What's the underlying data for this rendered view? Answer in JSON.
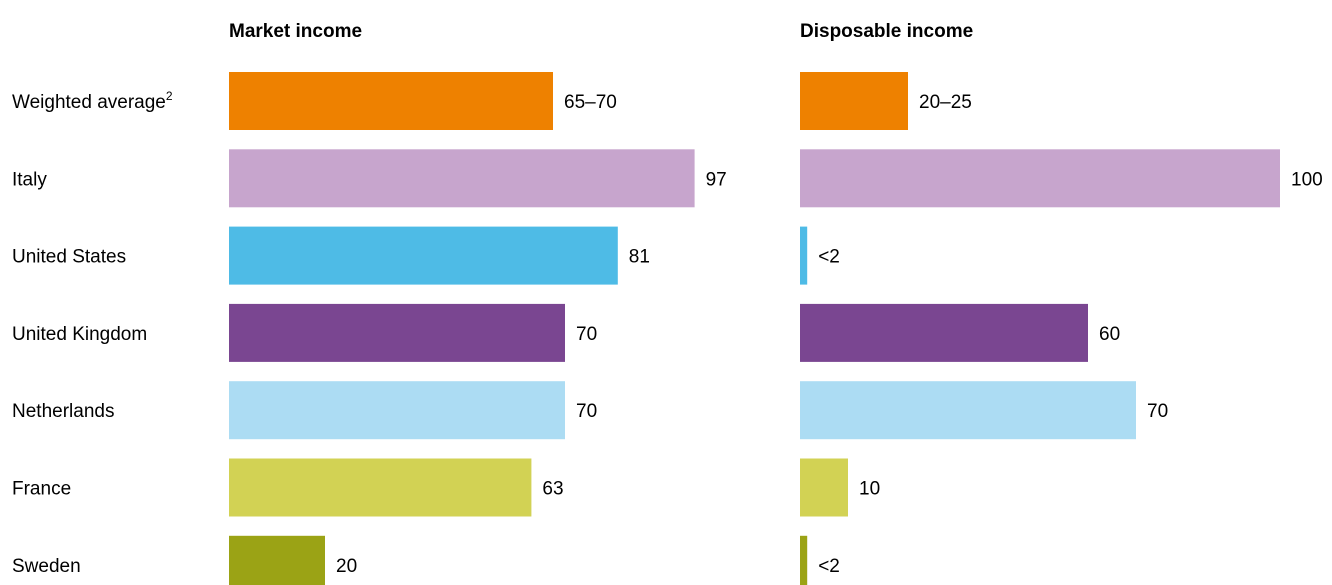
{
  "chart_data": {
    "type": "bar",
    "orientation": "horizontal",
    "categories": [
      {
        "label": "Weighted average",
        "superscript": "2"
      },
      {
        "label": "Italy",
        "superscript": ""
      },
      {
        "label": "United States",
        "superscript": ""
      },
      {
        "label": "United Kingdom",
        "superscript": ""
      },
      {
        "label": "Netherlands",
        "superscript": ""
      },
      {
        "label": "France",
        "superscript": ""
      },
      {
        "label": "Sweden",
        "superscript": ""
      }
    ],
    "colors": [
      "#ee8100",
      "#c7a5cd",
      "#4ebbe6",
      "#7a4691",
      "#acdcf3",
      "#d2d254",
      "#9ba315"
    ],
    "xlim": [
      0,
      100
    ],
    "grid": false,
    "legend": "none",
    "panels": [
      {
        "title": "Market income",
        "values": [
          67.5,
          97,
          81,
          70,
          70,
          63,
          20
        ],
        "labels": [
          "65–70",
          "97",
          "81",
          "70",
          "70",
          "63",
          "20"
        ]
      },
      {
        "title": "Disposable income",
        "values": [
          22.5,
          100,
          1.5,
          60,
          70,
          10,
          1.5
        ],
        "labels": [
          "20–25",
          "100",
          "<2",
          "60",
          "70",
          "10",
          "<2"
        ]
      }
    ]
  }
}
